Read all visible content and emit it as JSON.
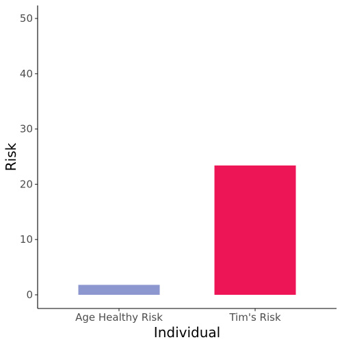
{
  "chart_data": {
    "type": "bar",
    "categories": [
      "Age Healthy Risk",
      "Tim's Risk"
    ],
    "values": [
      1.8,
      23.4
    ],
    "colors": [
      "#8c96cf",
      "#ee1556"
    ],
    "title": "",
    "xlabel": "Individual",
    "ylabel": "Risk",
    "ylim": [
      0,
      52
    ],
    "yticks": [
      0,
      10,
      20,
      30,
      40,
      50
    ],
    "grid": false,
    "legend": "none"
  }
}
